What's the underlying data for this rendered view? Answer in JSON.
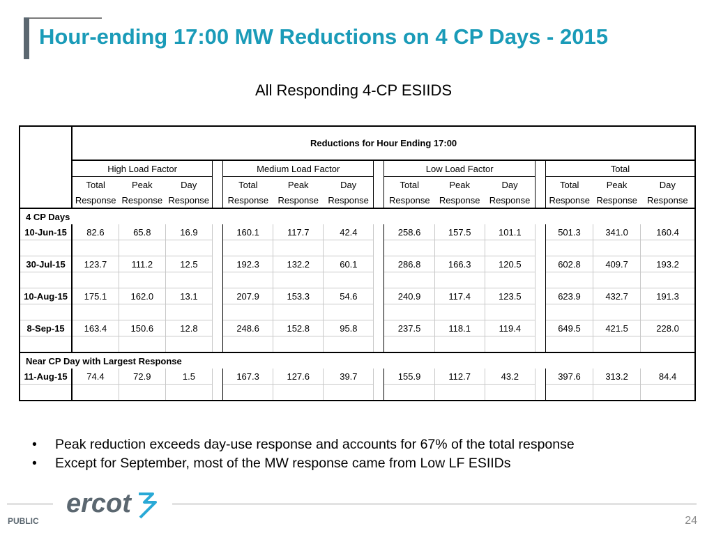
{
  "title": "Hour-ending 17:00 MW Reductions on 4 CP Days - 2015",
  "subtitle": "All Responding 4-CP ESIIDS",
  "table": {
    "top_header": "Reductions for Hour Ending 17:00",
    "groups": [
      "High Load Factor",
      "Medium Load Factor",
      "Low Load Factor",
      "Total"
    ],
    "col_line1": [
      "Total",
      "Peak",
      "Day"
    ],
    "col_line2": [
      "Response",
      "Response",
      "Response"
    ],
    "section1": "4 CP Days",
    "section2": "Near CP Day with Largest Response",
    "rows_cp": [
      {
        "date": "10-Jun-15",
        "v": [
          "82.6",
          "65.8",
          "16.9",
          "160.1",
          "117.7",
          "42.4",
          "258.6",
          "157.5",
          "101.1",
          "501.3",
          "341.0",
          "160.4"
        ]
      },
      {
        "date": "30-Jul-15",
        "v": [
          "123.7",
          "111.2",
          "12.5",
          "192.3",
          "132.2",
          "60.1",
          "286.8",
          "166.3",
          "120.5",
          "602.8",
          "409.7",
          "193.2"
        ]
      },
      {
        "date": "10-Aug-15",
        "v": [
          "175.1",
          "162.0",
          "13.1",
          "207.9",
          "153.3",
          "54.6",
          "240.9",
          "117.4",
          "123.5",
          "623.9",
          "432.7",
          "191.3"
        ]
      },
      {
        "date": "8-Sep-15",
        "v": [
          "163.4",
          "150.6",
          "12.8",
          "248.6",
          "152.8",
          "95.8",
          "237.5",
          "118.1",
          "119.4",
          "649.5",
          "421.5",
          "228.0"
        ]
      }
    ],
    "rows_near": [
      {
        "date": "11-Aug-15",
        "v": [
          "74.4",
          "72.9",
          "1.5",
          "167.3",
          "127.6",
          "39.7",
          "155.9",
          "112.7",
          "43.2",
          "397.6",
          "313.2",
          "84.4"
        ]
      }
    ]
  },
  "bullets": [
    "Peak reduction exceeds day-use response and accounts for 67% of the total response",
    "Except for September, most of the MW response came from Low LF ESIIDs"
  ],
  "footer": {
    "classification": "PUBLIC",
    "logo_text": "ercot",
    "page_number": "24"
  },
  "colors": {
    "title": "#1a9bb8",
    "logo": "#5b6770",
    "logo_accent": "#29a9d6"
  }
}
